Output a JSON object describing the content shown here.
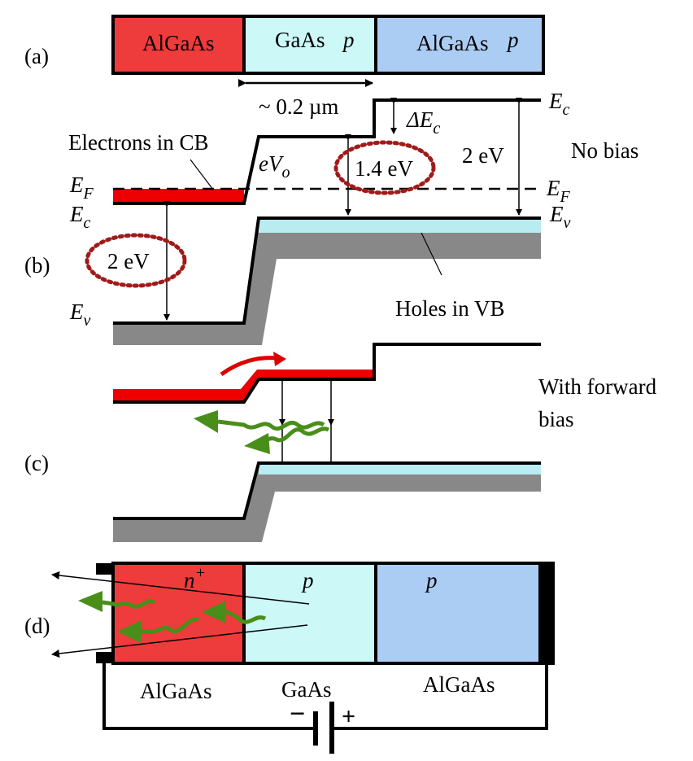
{
  "panel_labels": {
    "a": "(a)",
    "b": "(b)",
    "c": "(c)",
    "d": "(d)"
  },
  "layers_a": {
    "left": {
      "material": "AlGaAs",
      "doping": ""
    },
    "middle": {
      "material": "GaAs",
      "doping": "p"
    },
    "right": {
      "material": "AlGaAs",
      "doping": "p"
    }
  },
  "dimension": "~ 0.2 µm",
  "band_b": {
    "ec_right": {
      "main": "E",
      "sub": "c"
    },
    "delta_ec": {
      "main": "ΔE",
      "sub": "c"
    },
    "ef_left": {
      "main": "E",
      "sub": "F"
    },
    "ec_left": {
      "main": "E",
      "sub": "c"
    },
    "ev_left": {
      "main": "E",
      "sub": "v"
    },
    "ef_right": {
      "main": "E",
      "sub": "F"
    },
    "ev_right": {
      "main": "E",
      "sub": "v"
    },
    "evo": {
      "main": "eV",
      "sub": "o"
    },
    "electrons_label": "Electrons in CB",
    "holes_label": "Holes in VB",
    "gap_left": "2 eV",
    "gap_mid": "1.4 eV",
    "gap_right": "2 eV",
    "no_bias": "No bias"
  },
  "band_c": {
    "forward_bias_line1": "With forward",
    "forward_bias_line2": "bias"
  },
  "device_d": {
    "left_doping_main": "n",
    "left_doping_sup": "+",
    "mid_doping": "p",
    "right_doping": "p",
    "left_material": "AlGaAs",
    "mid_material": "GaAs",
    "right_material": "AlGaAs",
    "battery_minus": "−",
    "battery_plus": "+"
  },
  "colors": {
    "n_algaas": "#ee3b3b",
    "p_gaas": "#ccf8f8",
    "p_algaas": "#abcdf4",
    "electrons": "#ee0000",
    "holes": "#b8ecf0",
    "substrate": "#888888",
    "photon": "#4a8e1a",
    "ellipse": "#a01a1a"
  },
  "icons": {
    "photon": "wavy-arrow-icon",
    "electron_flow": "curved-arrow-icon"
  }
}
